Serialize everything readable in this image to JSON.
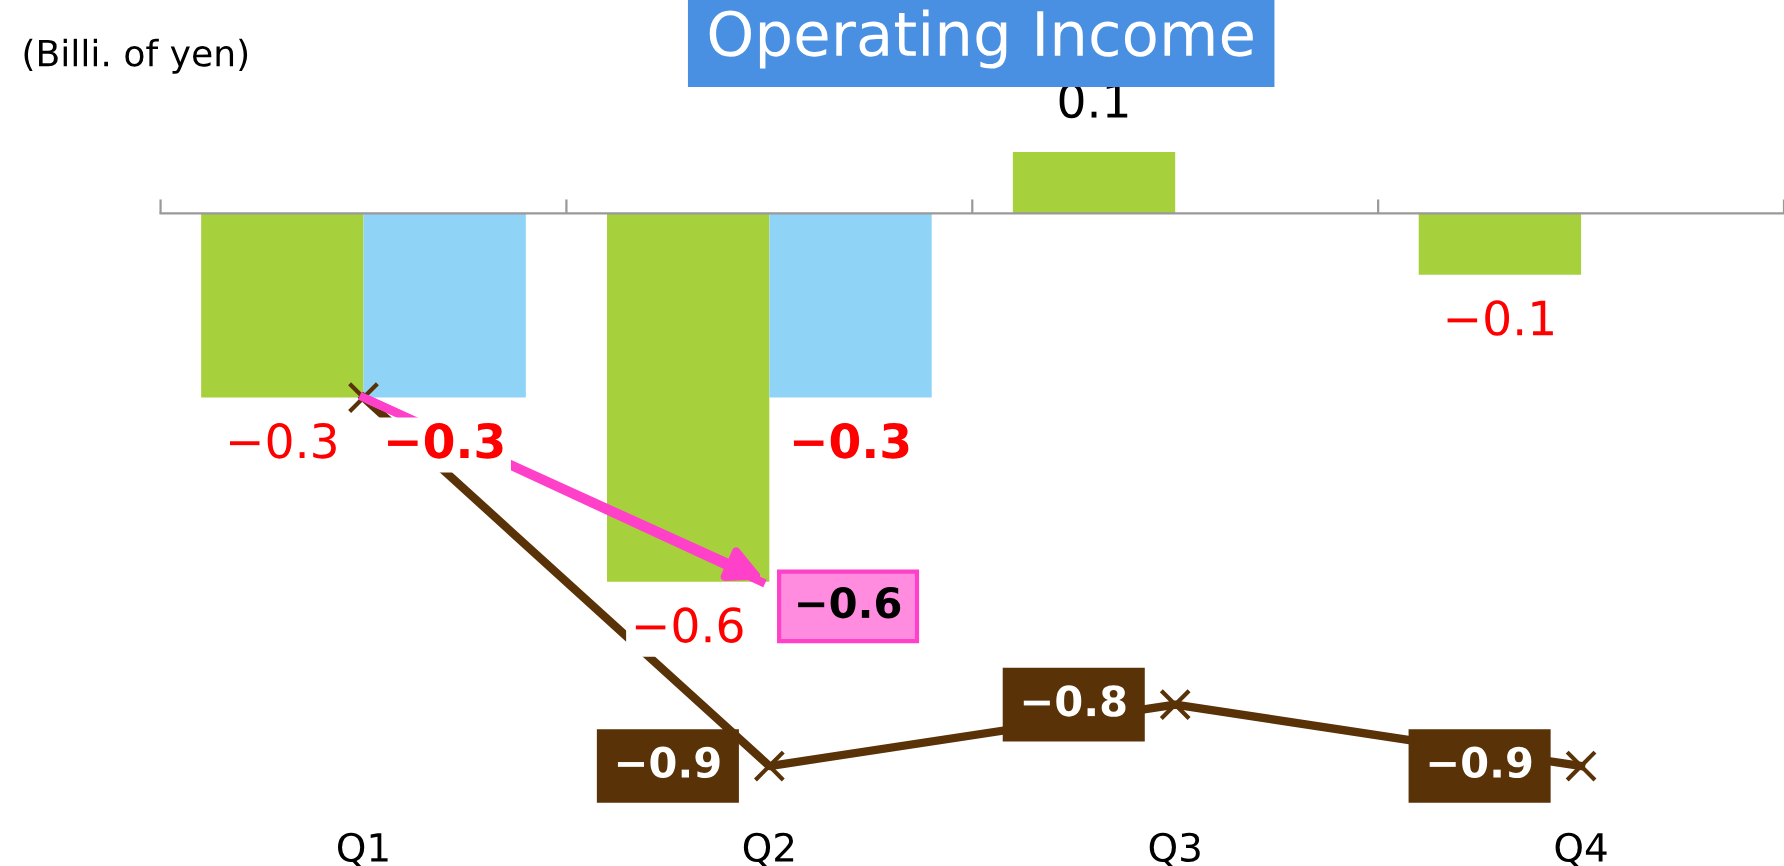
{
  "chart_data": {
    "type": "bar",
    "title": "Operating Income",
    "ylabel": "(Billi. of yen)",
    "categories": [
      "Q1",
      "Q2",
      "Q3",
      "Q4"
    ],
    "series": [
      {
        "color": "#a6d13c",
        "values": [
          -0.3,
          -0.6,
          0.1,
          -0.1
        ],
        "value_labels": [
          "−0.3",
          "−0.6",
          "0.1",
          "−0.1"
        ]
      },
      {
        "type": "bar",
        "color": "#8fd3f7",
        "values": [
          -0.3,
          -0.3,
          null,
          null
        ],
        "value_labels": [
          "−0.3",
          "−0.3",
          null,
          null
        ]
      },
      {
        "type": "line",
        "color": "#5a3208",
        "marker": "cross",
        "values": [
          -0.3,
          -0.9,
          -0.8,
          -0.9
        ],
        "value_labels": [
          null,
          "−0.9",
          "−0.8",
          "−0.9"
        ]
      },
      {
        "type": "line",
        "color": "#ff40c8",
        "marker": "none",
        "values": [
          -0.3,
          -0.6,
          null,
          null
        ],
        "value_labels": [
          null,
          "−0.6",
          null,
          null
        ]
      }
    ],
    "tick_labels": "x",
    "legend": false,
    "grid": false
  }
}
